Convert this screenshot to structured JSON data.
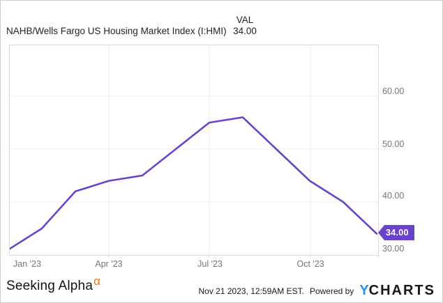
{
  "header": {
    "series_label": "NAHB/Wells Fargo US Housing Market Index (I:HMI)",
    "val_column_label": "VAL",
    "val_value": "34.00"
  },
  "chart_data": {
    "type": "line",
    "title": "NAHB/Wells Fargo US Housing Market Index (I:HMI)",
    "series": [
      {
        "name": "NAHB/Wells Fargo US Housing Market Index (I:HMI)",
        "x": [
          "Dec '22",
          "Jan '23",
          "Feb '23",
          "Mar '23",
          "Apr '23",
          "May '23",
          "Jun '23",
          "Jul '23",
          "Aug '23",
          "Sep '23",
          "Oct '23",
          "Nov '23"
        ],
        "values": [
          31,
          35,
          42,
          44,
          45,
          50,
          55,
          56,
          50,
          44,
          40,
          34
        ]
      }
    ],
    "x_tick_labels": [
      "Jan '23",
      "Apr '23",
      "Jul '23",
      "Oct '23"
    ],
    "y_tick_labels": [
      "60.00",
      "50.00",
      "40.00",
      "30.00"
    ],
    "y_ticks": [
      60,
      50,
      40,
      30
    ],
    "ylim": [
      29.9,
      69.7
    ],
    "grid": true,
    "legend_position": "none",
    "line_color": "#6b42cc",
    "last_value_label": "34.00"
  },
  "footer": {
    "seeking_alpha_text": "Seeking Alpha",
    "seeking_alpha_glyph": "α",
    "timestamp": "Nov 21 2023, 12:59AM EST.",
    "powered_by_label": "Powered by",
    "ycharts_y": "Y",
    "ycharts_charts": "CHARTS"
  },
  "colors": {
    "line_purple": "#6b42cc",
    "badge_purple": "#6b42cc",
    "axis_label_gray": "#757575",
    "gridline_gray": "#ebebeb",
    "plot_border_gray": "#d9d9d9",
    "ycharts_blue": "#2196f3",
    "alpha_orange": "#f97316",
    "text_dark": "#222222"
  }
}
